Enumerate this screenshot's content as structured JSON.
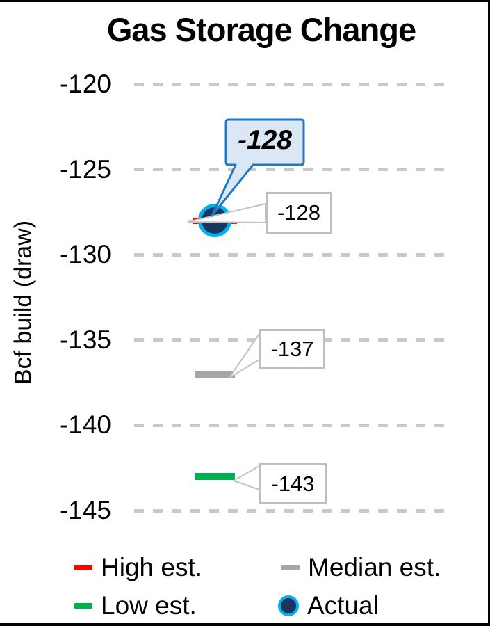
{
  "chart_data": {
    "type": "scatter",
    "title": "Gas Storage Change",
    "ylabel": "Bcf build (draw)",
    "yticks": [
      -120,
      -125,
      -130,
      -135,
      -140,
      -145
    ],
    "ylim": [
      -147,
      -118
    ],
    "grid": "horizontal-dashed",
    "legend_position": "bottom",
    "series": [
      {
        "name": "High est.",
        "value": -128,
        "marker": "dash",
        "color": "#ff0000"
      },
      {
        "name": "Median est.",
        "value": -137,
        "marker": "dash",
        "color": "#a6a6a6"
      },
      {
        "name": "Low est.",
        "value": -143,
        "marker": "dash",
        "color": "#00b050"
      },
      {
        "name": "Actual",
        "value": -128,
        "marker": "circle",
        "color": "#17375e",
        "ring_color": "#00b0f0"
      }
    ],
    "point_labels": [
      {
        "text": "-128",
        "for": "High est."
      },
      {
        "text": "-137",
        "for": "Median est."
      },
      {
        "text": "-143",
        "for": "Low est."
      }
    ],
    "callout": {
      "text": "-128",
      "for": "Actual",
      "fill": "#dce7f5",
      "border": "#1f78c1"
    }
  },
  "legend": {
    "items": [
      {
        "label": "High est.",
        "marker": "dash",
        "color": "#ff0000"
      },
      {
        "label": "Median est.",
        "marker": "dash",
        "color": "#a6a6a6"
      },
      {
        "label": "Low est.",
        "marker": "dash",
        "color": "#00b050"
      },
      {
        "label": "Actual",
        "marker": "circle",
        "color": "#17375e",
        "ring_color": "#00b0f0"
      }
    ]
  },
  "colors": {
    "gridline": "#c9c9c9",
    "label_box_border": "#bfbfbf",
    "leader_line": "#c2c2c2",
    "text": "#000000",
    "frame": "#000000"
  }
}
